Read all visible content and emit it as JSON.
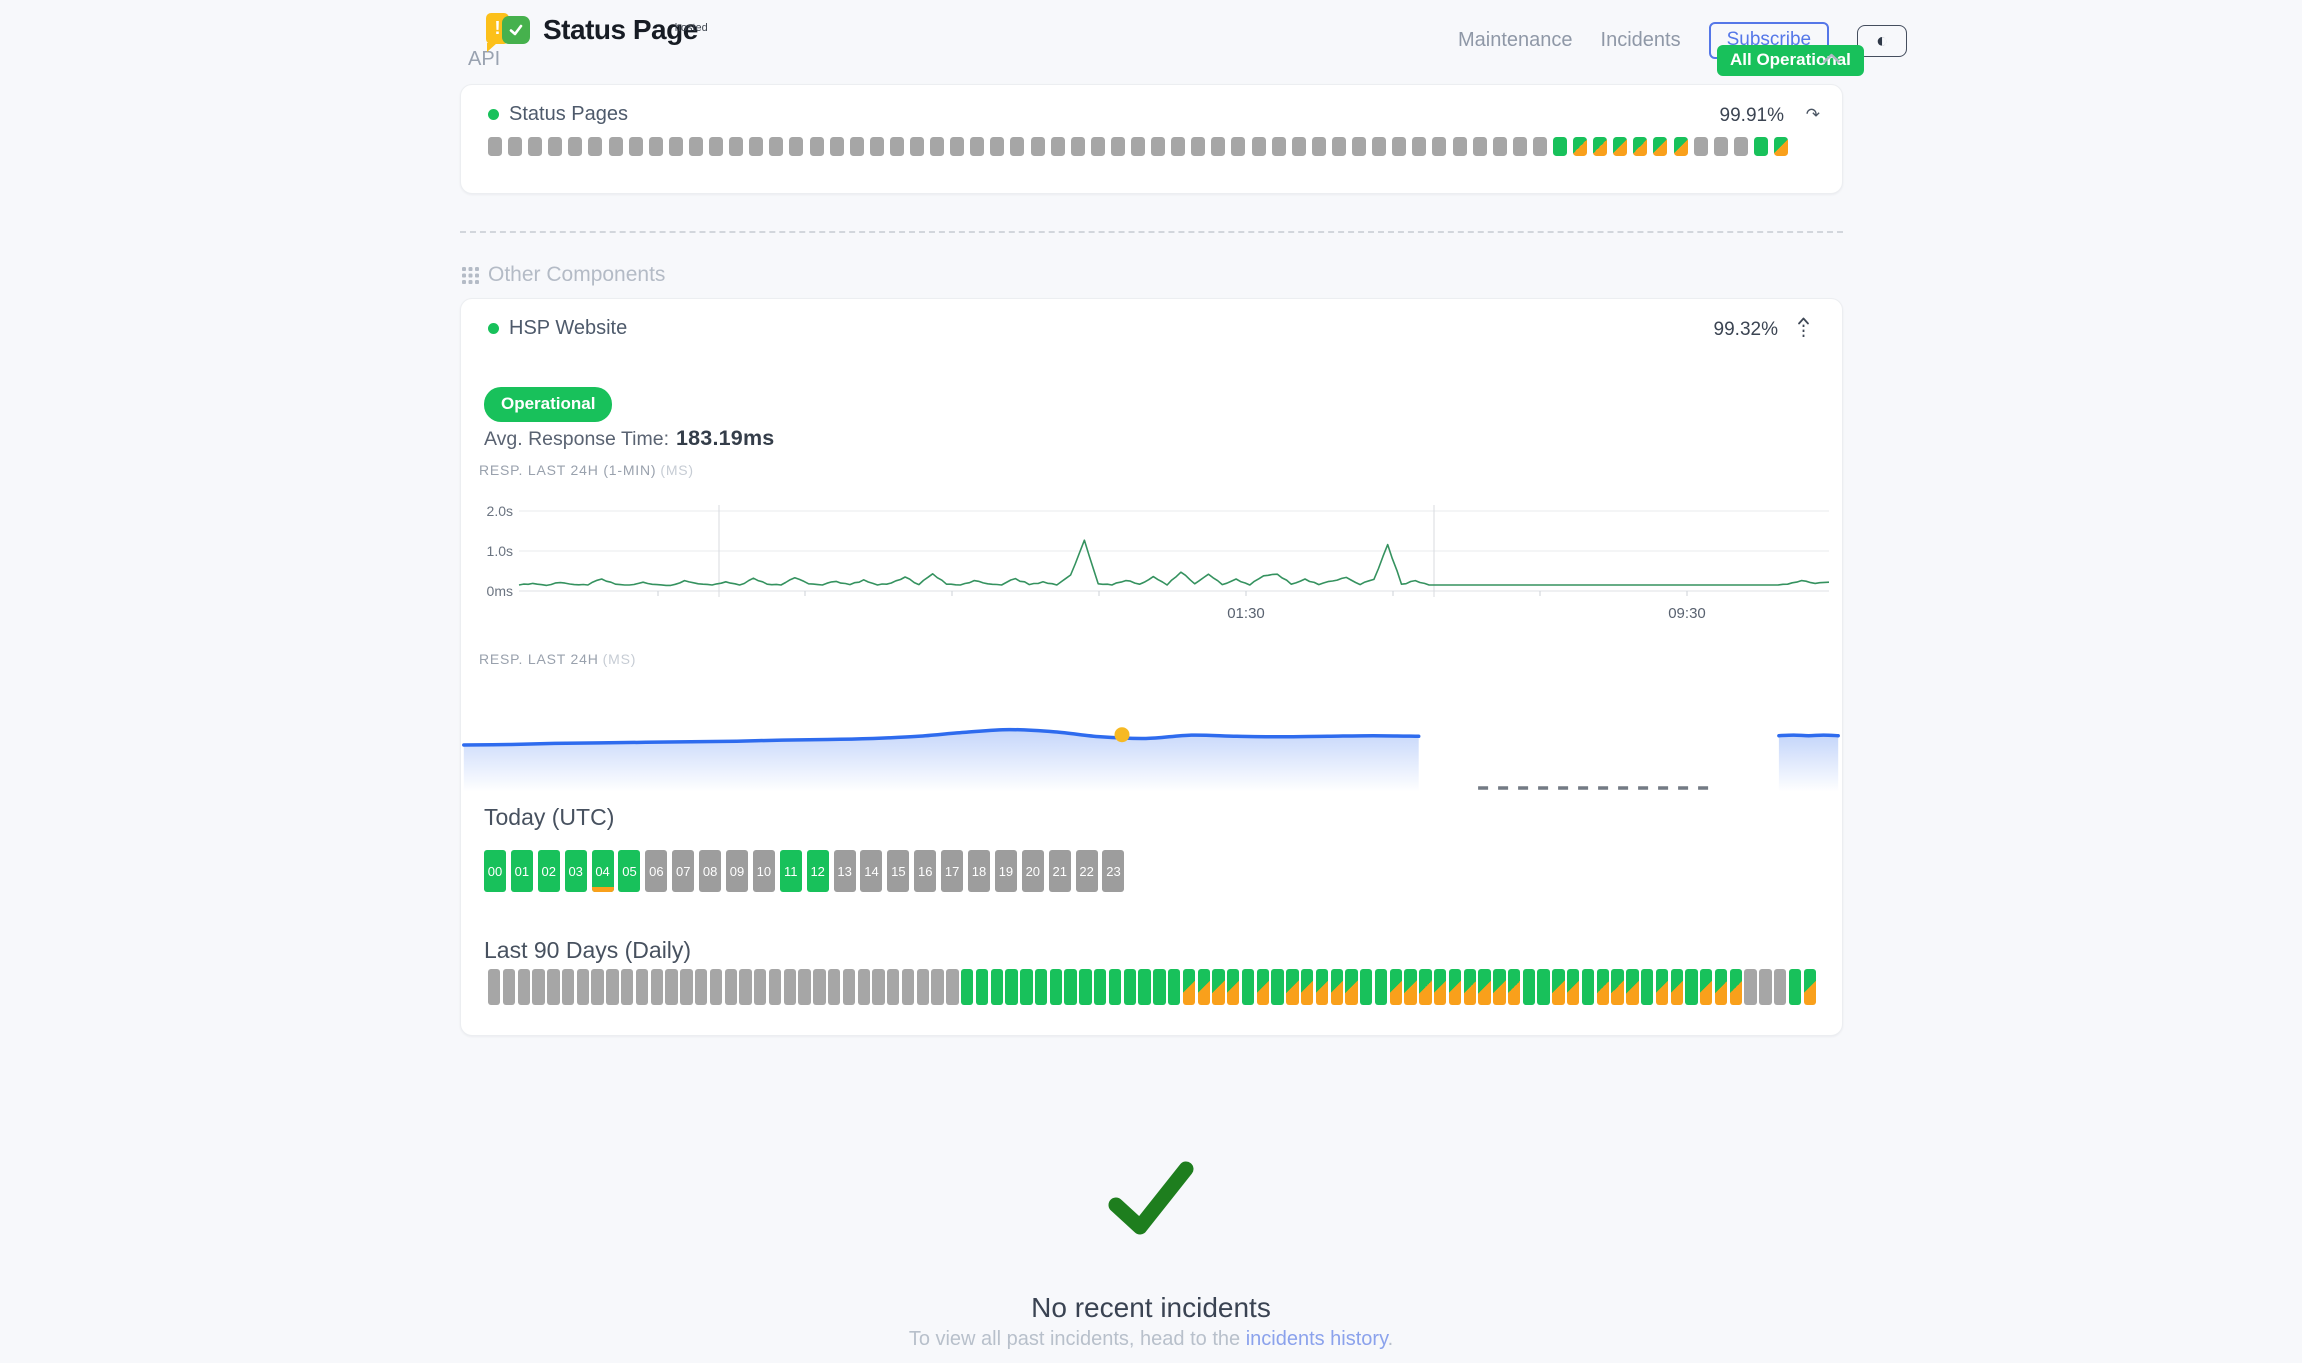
{
  "header": {
    "logo": {
      "title": "Status Page",
      "superscript": "hosted"
    },
    "nav": {
      "maintenance": "Maintenance",
      "incidents": "Incidents"
    },
    "subscribe_label": "Subscribe"
  },
  "overall_status": {
    "label": "All Operational"
  },
  "bar_states_legend": {
    "u": "up",
    "d": "degraded",
    "n": "no-data"
  },
  "sections": {
    "api": {
      "title": "API",
      "component": {
        "name": "Status Pages",
        "uptime": "99.91%",
        "bars": [
          "n",
          "n",
          "n",
          "n",
          "n",
          "n",
          "n",
          "n",
          "n",
          "n",
          "n",
          "n",
          "n",
          "n",
          "n",
          "n",
          "n",
          "n",
          "n",
          "n",
          "n",
          "n",
          "n",
          "n",
          "n",
          "n",
          "n",
          "n",
          "n",
          "n",
          "n",
          "n",
          "n",
          "n",
          "n",
          "n",
          "n",
          "n",
          "n",
          "n",
          "n",
          "n",
          "n",
          "n",
          "n",
          "n",
          "n",
          "n",
          "n",
          "n",
          "n",
          "n",
          "n",
          "u",
          "d",
          "d",
          "d",
          "d",
          "d",
          "d",
          "n",
          "n",
          "n",
          "u",
          "d"
        ]
      }
    },
    "other": {
      "title": "Other Components",
      "component": {
        "name": "HSP Website",
        "uptime": "99.32%",
        "status_badge": "Operational",
        "avg_label": "Avg. Response Time:",
        "avg_value": "183.19ms"
      }
    }
  },
  "chart_data": [
    {
      "type": "line",
      "title": "RESP. LAST 24H (1-MIN)",
      "unit": "(MS)",
      "ylabels": [
        "2.0s",
        "1.0s",
        "0ms"
      ],
      "xlabels": [
        "01:30",
        "09:30"
      ],
      "y_range_ms": [
        0,
        2400
      ],
      "samples_ms": [
        150,
        190,
        140,
        210,
        160,
        150,
        300,
        170,
        150,
        220,
        160,
        140,
        260,
        180,
        150,
        230,
        150,
        320,
        170,
        150,
        330,
        180,
        150,
        240,
        160,
        280,
        150,
        200,
        350,
        160,
        430,
        170,
        150,
        260,
        180,
        150,
        310,
        160,
        230,
        150,
        400,
        1270,
        180,
        150,
        260,
        170,
        360,
        150,
        470,
        180,
        420,
        160,
        300,
        150,
        380,
        420,
        170,
        300,
        160,
        250,
        340,
        160,
        290,
        1160,
        170,
        260,
        150,
        150,
        150,
        150,
        150,
        150,
        150,
        150,
        150,
        150,
        150,
        150,
        150,
        150,
        150,
        150,
        150,
        150,
        150,
        150,
        150,
        150,
        150,
        150,
        150,
        150,
        170,
        260,
        190,
        220
      ]
    },
    {
      "type": "area",
      "title": "RESP. LAST 24H",
      "unit": "(MS)",
      "segments": [
        {
          "x_start_frac": 0.002,
          "x_end_frac": 0.694,
          "values_ms": [
            172,
            173,
            175,
            176,
            177,
            178,
            179,
            181,
            182,
            184,
            188,
            195,
            200,
            196,
            187,
            184,
            190,
            188,
            187,
            188,
            189,
            188
          ]
        },
        {
          "x_start_frac": 0.955,
          "x_end_frac": 0.998,
          "values_ms": [
            189,
            190,
            189,
            190,
            189
          ]
        }
      ],
      "gap_dash": {
        "x_start_frac": 0.737,
        "x_end_frac": 0.907
      },
      "marker": {
        "x_frac": 0.479,
        "value_ms": 189
      }
    }
  ],
  "today": {
    "title": "Today (UTC)",
    "hours": [
      {
        "label": "00",
        "state": "u"
      },
      {
        "label": "01",
        "state": "u"
      },
      {
        "label": "02",
        "state": "u"
      },
      {
        "label": "03",
        "state": "u"
      },
      {
        "label": "04",
        "state": "u",
        "partial_degraded": true
      },
      {
        "label": "05",
        "state": "u"
      },
      {
        "label": "06",
        "state": "n"
      },
      {
        "label": "07",
        "state": "n"
      },
      {
        "label": "08",
        "state": "n"
      },
      {
        "label": "09",
        "state": "n"
      },
      {
        "label": "10",
        "state": "n"
      },
      {
        "label": "11",
        "state": "u"
      },
      {
        "label": "12",
        "state": "u"
      },
      {
        "label": "13",
        "state": "n"
      },
      {
        "label": "14",
        "state": "n"
      },
      {
        "label": "15",
        "state": "n"
      },
      {
        "label": "16",
        "state": "n"
      },
      {
        "label": "17",
        "state": "n"
      },
      {
        "label": "18",
        "state": "n"
      },
      {
        "label": "19",
        "state": "n"
      },
      {
        "label": "20",
        "state": "n"
      },
      {
        "label": "21",
        "state": "n"
      },
      {
        "label": "22",
        "state": "n"
      },
      {
        "label": "23",
        "state": "n"
      }
    ]
  },
  "last90": {
    "title": "Last 90 Days (Daily)",
    "bars": [
      "n",
      "n",
      "n",
      "n",
      "n",
      "n",
      "n",
      "n",
      "n",
      "n",
      "n",
      "n",
      "n",
      "n",
      "n",
      "n",
      "n",
      "n",
      "n",
      "n",
      "n",
      "n",
      "n",
      "n",
      "n",
      "n",
      "n",
      "n",
      "n",
      "n",
      "n",
      "n",
      "u",
      "u",
      "u",
      "u",
      "u",
      "u",
      "u",
      "u",
      "u",
      "u",
      "u",
      "u",
      "u",
      "u",
      "u",
      "d",
      "d",
      "d",
      "d",
      "u",
      "d",
      "u",
      "d",
      "d",
      "d",
      "d",
      "d",
      "u",
      "u",
      "d",
      "d",
      "d",
      "d",
      "d",
      "d",
      "d",
      "d",
      "d",
      "u",
      "u",
      "d",
      "d",
      "u",
      "d",
      "d",
      "d",
      "u",
      "d",
      "d",
      "u",
      "d",
      "d",
      "d",
      "n",
      "n",
      "n",
      "u",
      "d"
    ]
  },
  "incidents": {
    "title": "No recent incidents",
    "subtext_prefix": "To view all past incidents, head to the ",
    "link_label": "incidents history",
    "subtext_suffix": "."
  },
  "colors": {
    "green": "#18c15b",
    "orange": "#f9a01b",
    "gray_bar": "#a6a6a6",
    "accent_blue": "#5577e8",
    "link_blue": "#8ba2ec",
    "check_green": "#1e7e1e",
    "sparkline_green": "#35925f",
    "area_line_blue": "#2e6bee",
    "marker_yellow": "#f6b923"
  }
}
